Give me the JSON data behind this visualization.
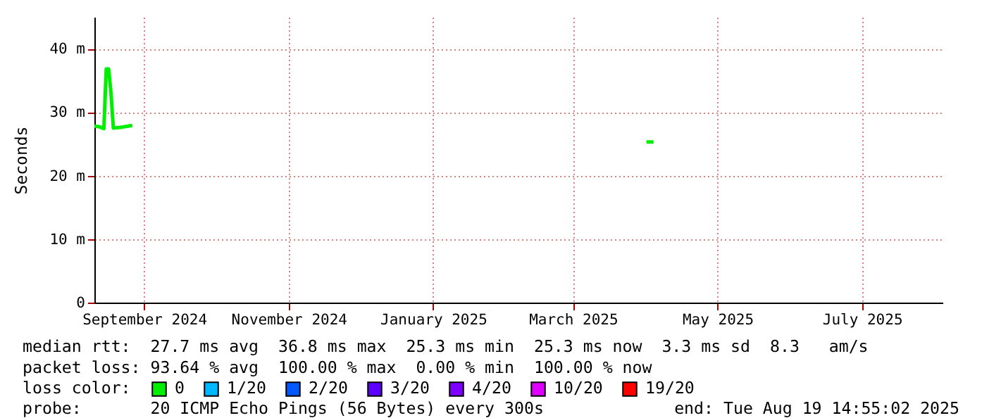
{
  "chart_data": {
    "type": "line",
    "ylabel": "Seconds",
    "xlim": [
      "2024-08-26",
      "2025-08-19"
    ],
    "xticks": [
      {
        "value": "2024-09-16",
        "label": "September 2024"
      },
      {
        "value": "2024-11-16",
        "label": "November 2024"
      },
      {
        "value": "2025-01-16",
        "label": "January 2025"
      },
      {
        "value": "2025-03-16",
        "label": "March 2025"
      },
      {
        "value": "2025-05-16",
        "label": "May 2025"
      },
      {
        "value": "2025-07-16",
        "label": "July 2025"
      }
    ],
    "ylim": [
      0,
      45
    ],
    "yticks": [
      {
        "value": 0,
        "label": "0"
      },
      {
        "value": 10,
        "label": "10 m"
      },
      {
        "value": 20,
        "label": "20 m"
      },
      {
        "value": 30,
        "label": "30 m"
      },
      {
        "value": 40,
        "label": "40 m"
      }
    ],
    "grid": true,
    "legend": "bottom",
    "legend_title": "loss color:",
    "series": [
      {
        "name": "0",
        "color": "#00ee00",
        "x": [
          "2024-08-26",
          "2024-08-28",
          "2024-08-30",
          "2024-08-31",
          "2024-09-01",
          "2024-09-02",
          "2024-09-03",
          "2024-09-06",
          "2024-09-11",
          "2025-04-13",
          "2025-04-16",
          "2025-04-19"
        ],
        "values": [
          27.8,
          27.7,
          27.4,
          36.8,
          36.8,
          33.0,
          27.5,
          27.6,
          27.9,
          null,
          25.3,
          25.3
        ]
      },
      {
        "name": "1/20",
        "color": "#00b8ff"
      },
      {
        "name": "2/20",
        "color": "#0059ff"
      },
      {
        "name": "3/20",
        "color": "#5e00ff"
      },
      {
        "name": "4/20",
        "color": "#7e00ff"
      },
      {
        "name": "10/20",
        "color": "#dd00ff"
      },
      {
        "name": "19/20",
        "color": "#ff0000"
      }
    ],
    "annotations": [
      "median rtt:  27.7 ms avg  36.8 ms max  25.3 ms min  25.3 ms now  3.3 ms sd  8.3   am/s",
      "packet loss: 93.64 % avg  100.00 % max  0.00 % min  100.00 % now",
      "probe:       20 ICMP Echo Pings (56 Bytes) every 300s",
      "end: Tue Aug 19 14:55:02 2025"
    ]
  }
}
